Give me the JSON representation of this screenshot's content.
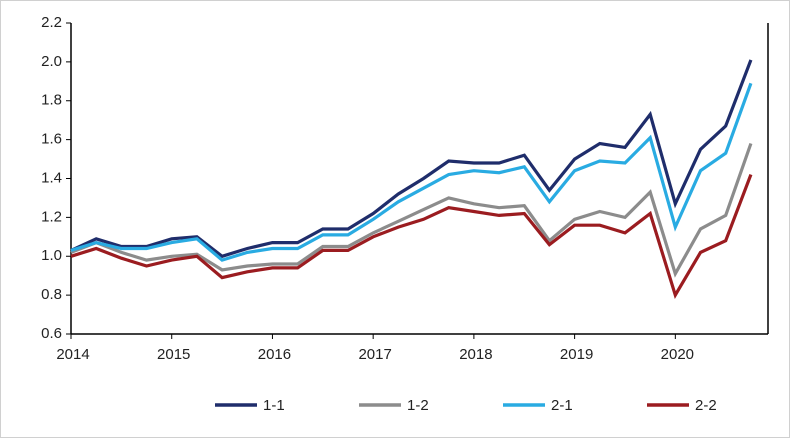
{
  "chart_data": {
    "type": "line",
    "title": "",
    "xlabel": "",
    "ylabel": "",
    "ylim": [
      0.6,
      2.2
    ],
    "xlim": [
      2014.0,
      2020.92
    ],
    "yticks": [
      "0.6",
      "0.8",
      "1.0",
      "1.2",
      "1.4",
      "1.6",
      "1.8",
      "2.0",
      "2.2"
    ],
    "xticks": [
      "2014",
      "2015",
      "2016",
      "2017",
      "2018",
      "2019",
      "2020"
    ],
    "grid": false,
    "legend_position": "bottom",
    "x": [
      2014.0,
      2014.25,
      2014.5,
      2014.75,
      2015.0,
      2015.25,
      2015.5,
      2015.75,
      2016.0,
      2016.25,
      2016.5,
      2016.75,
      2017.0,
      2017.25,
      2017.5,
      2017.75,
      2018.0,
      2018.25,
      2018.5,
      2018.75,
      2019.0,
      2019.25,
      2019.5,
      2019.75,
      2020.0,
      2020.25,
      2020.5,
      2020.75
    ],
    "series": [
      {
        "name": "1-1",
        "color": "#1f2d6b",
        "values": [
          1.03,
          1.09,
          1.05,
          1.05,
          1.09,
          1.1,
          1.0,
          1.04,
          1.07,
          1.07,
          1.14,
          1.14,
          1.22,
          1.32,
          1.4,
          1.49,
          1.48,
          1.48,
          1.52,
          1.34,
          1.5,
          1.58,
          1.56,
          1.73,
          1.27,
          1.55,
          1.67,
          2.01
        ]
      },
      {
        "name": "1-2",
        "color": "#8c8c8c",
        "values": [
          1.02,
          1.07,
          1.02,
          0.98,
          1.0,
          1.01,
          0.93,
          0.95,
          0.96,
          0.96,
          1.05,
          1.05,
          1.12,
          1.18,
          1.24,
          1.3,
          1.27,
          1.25,
          1.26,
          1.08,
          1.19,
          1.23,
          1.2,
          1.33,
          0.91,
          1.14,
          1.21,
          1.58
        ]
      },
      {
        "name": "2-1",
        "color": "#29abe2",
        "values": [
          1.03,
          1.07,
          1.04,
          1.04,
          1.07,
          1.09,
          0.98,
          1.02,
          1.04,
          1.04,
          1.11,
          1.11,
          1.19,
          1.28,
          1.35,
          1.42,
          1.44,
          1.43,
          1.46,
          1.28,
          1.44,
          1.49,
          1.48,
          1.61,
          1.15,
          1.44,
          1.53,
          1.89
        ]
      },
      {
        "name": "2-2",
        "color": "#9b1c20",
        "values": [
          1.0,
          1.04,
          0.99,
          0.95,
          0.98,
          1.0,
          0.89,
          0.92,
          0.94,
          0.94,
          1.03,
          1.03,
          1.1,
          1.15,
          1.19,
          1.25,
          1.23,
          1.21,
          1.22,
          1.06,
          1.16,
          1.16,
          1.12,
          1.22,
          0.8,
          1.02,
          1.08,
          1.42
        ]
      }
    ]
  }
}
